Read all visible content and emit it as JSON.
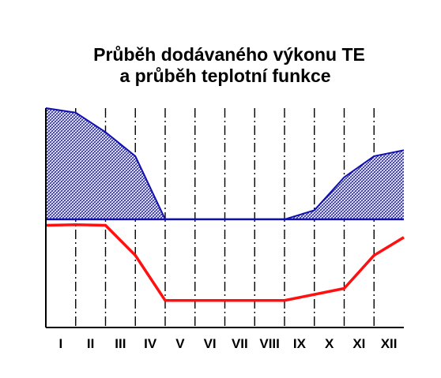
{
  "chart_data": {
    "type": "area",
    "title": [
      "Průběh dodávaného výkonu TE",
      "a průběh teplotní funkce"
    ],
    "xlabel": "",
    "ylabel": "",
    "categories": [
      "I",
      "II",
      "III",
      "IV",
      "V",
      "VI",
      "VII",
      "VIII",
      "IX",
      "X",
      "XI",
      "XII"
    ],
    "x": [
      0,
      1,
      2,
      3,
      4,
      5,
      6,
      7,
      8,
      9,
      10,
      11,
      12
    ],
    "xlim": [
      0,
      12
    ],
    "ylim": [
      -36,
      37
    ],
    "grid": "vertical dash-dot at month boundaries",
    "legend": "none",
    "series": [
      {
        "type": "area",
        "values": [
          37,
          35.5,
          29,
          21,
          0,
          0,
          0,
          0,
          0,
          3,
          14,
          21,
          23
        ],
        "color": "#1010b0",
        "fill_pattern": "hatched"
      },
      {
        "type": "line",
        "values": [
          -2,
          -1.8,
          -2,
          -12,
          -27,
          -27,
          -27,
          -27,
          -27,
          -25,
          -23,
          -12,
          -6
        ],
        "color": "#ff1010"
      }
    ]
  }
}
